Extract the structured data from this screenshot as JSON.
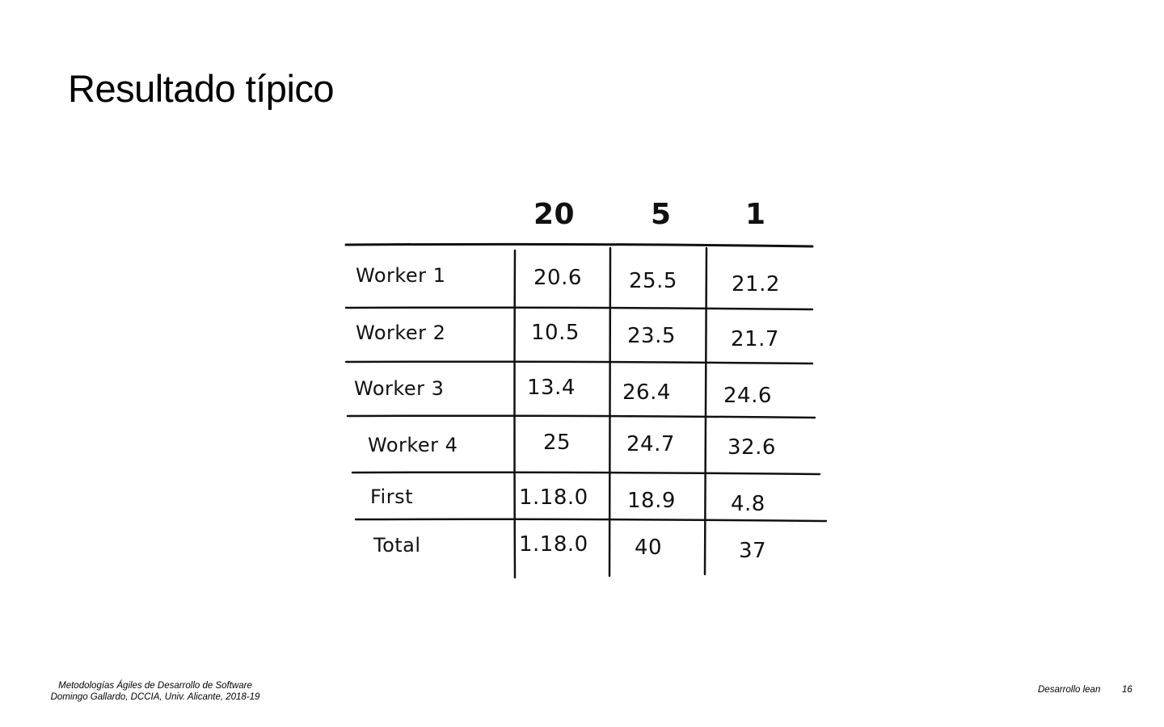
{
  "slide": {
    "title": "Resultado típico"
  },
  "table": {
    "columns": [
      "20",
      "5",
      "1"
    ],
    "rows": [
      {
        "label": "Worker 1",
        "values": [
          "20.6",
          "25.5",
          "21.2"
        ]
      },
      {
        "label": "Worker 2",
        "values": [
          "10.5",
          "23.5",
          "21.7"
        ]
      },
      {
        "label": "Worker 3",
        "values": [
          "13.4",
          "26.4",
          "24.6"
        ]
      },
      {
        "label": "Worker 4",
        "values": [
          "25",
          "24.7",
          "32.6"
        ]
      },
      {
        "label": "First",
        "values": [
          "1.18.0",
          "18.9",
          "4.8"
        ]
      },
      {
        "label": "Total",
        "values": [
          "1.18.0",
          "40",
          "37"
        ]
      }
    ]
  },
  "footer": {
    "course": "Metodologías Ágiles de Desarrollo de Software",
    "author": "Domingo Gallardo, DCCIA, Univ. Alicante, 2018-19",
    "section": "Desarrollo lean",
    "page_number": "16"
  }
}
